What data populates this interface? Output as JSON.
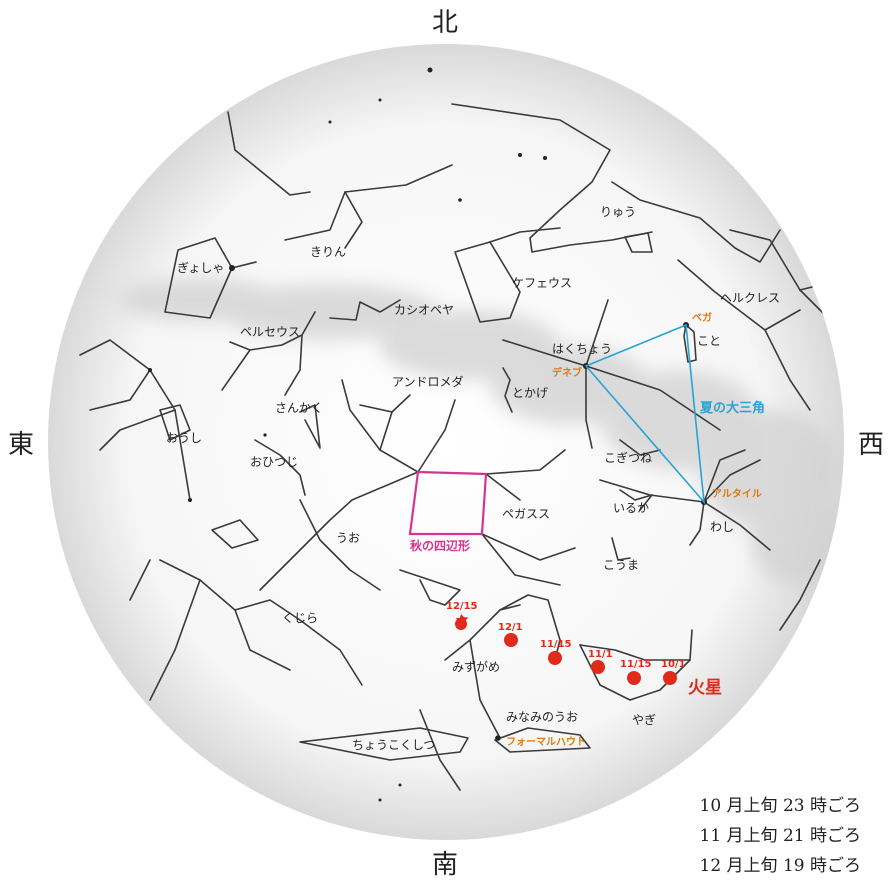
{
  "directions": {
    "north": "北",
    "south": "南",
    "east": "東",
    "west": "西"
  },
  "constellations": {
    "ryuu": "りゅう",
    "kirin": "きりん",
    "gyosha": "ぎょしゃ",
    "kefeusu": "ケフェウス",
    "herukuresu": "ヘルクレス",
    "kashiopeya": "カシオペヤ",
    "peruseusu": "ペルセウス",
    "hakuchou": "はくちょう",
    "koto": "こと",
    "andoromeda": "アンドロメダ",
    "tokage": "とかげ",
    "sankaku": "さんかく",
    "oushi": "おうし",
    "ohitsuji": "おひつじ",
    "kogitsune": "こぎつね",
    "iruka": "いるか",
    "pegasusu": "ペガスス",
    "uo": "うお",
    "washi": "わし",
    "kouma": "こうま",
    "kujira": "くじら",
    "mizugame": "みずがめ",
    "minaminouo": "みなみのうお",
    "yagi": "やぎ",
    "choukokushitsu": "ちょうこくしつ"
  },
  "stars": {
    "vega": "ベガ",
    "deneb": "デネブ",
    "altair": "アルタイル",
    "fomalhaut": "フォーマルハウト"
  },
  "asterisms": {
    "summer_triangle": "夏の大三角",
    "autumn_square": "秋の四辺形"
  },
  "mars": {
    "label": "火星",
    "dates": [
      "12/15",
      "12/1",
      "11/15",
      "11/1",
      "11/15",
      "10/1"
    ]
  },
  "viewing_times": [
    "10 月上旬 23 時ごろ",
    "11 月上旬 21 時ごろ",
    "12 月上旬 19 時ごろ"
  ],
  "colors": {
    "triangle": "#29a3d6",
    "square": "#d6358f",
    "star_label": "#e07a10",
    "mars": "#e02a1a",
    "lines": "#3a3a3a"
  }
}
